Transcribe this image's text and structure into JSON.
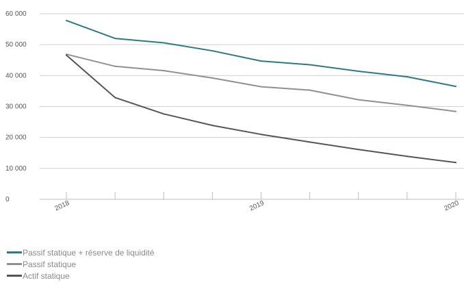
{
  "chart_data": {
    "type": "line",
    "x": [
      0,
      1,
      2,
      3,
      4,
      5,
      6,
      7,
      8
    ],
    "x_tick_labels": [
      {
        "x": 0,
        "label": "2018"
      },
      {
        "x": 4,
        "label": "2019"
      },
      {
        "x": 8,
        "label": "2020"
      }
    ],
    "ylim": [
      0,
      60000
    ],
    "yticks": [
      0,
      10000,
      20000,
      30000,
      40000,
      50000,
      60000
    ],
    "ytick_labels": [
      "0",
      "10 000",
      "20 000",
      "30 000",
      "40 000",
      "50 000",
      "60 000"
    ],
    "grid": true,
    "legend_position": "bottom-left",
    "series": [
      {
        "name": "Passif statique + réserve de liquidité",
        "color": "#2a7a85",
        "values": [
          57800,
          52000,
          50600,
          48000,
          44700,
          43500,
          41400,
          39600,
          36500
        ]
      },
      {
        "name": "Passif statique",
        "color": "#909090",
        "values": [
          46900,
          43000,
          41600,
          39200,
          36400,
          35300,
          32200,
          30400,
          28400
        ]
      },
      {
        "name": "Actif statique",
        "color": "#555555",
        "values": [
          46600,
          32900,
          27600,
          23900,
          21000,
          18500,
          16100,
          13900,
          11900
        ]
      }
    ]
  }
}
